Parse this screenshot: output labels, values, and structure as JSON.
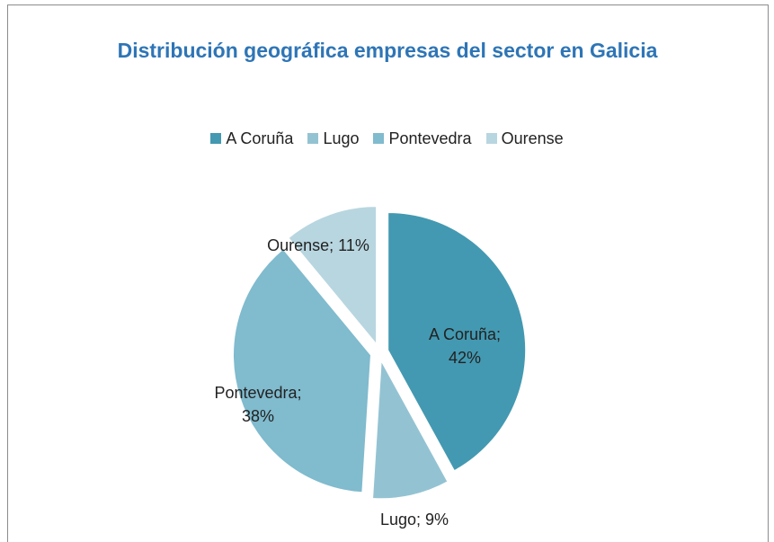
{
  "chart_data": {
    "type": "pie",
    "title": "Distribución geográfica empresas del sector en Galicia",
    "categories": [
      "A Coruña",
      "Lugo",
      "Pontevedra",
      "Ourense"
    ],
    "values": [
      42,
      9,
      38,
      11
    ],
    "value_labels": [
      "A Coruña; 42%",
      "Lugo; 9%",
      "Pontevedra; 38%",
      "Ourense; 11%"
    ],
    "colors": [
      "#4399b1",
      "#93c3d3",
      "#80bbce",
      "#b8d6e0"
    ],
    "legend": "top"
  }
}
